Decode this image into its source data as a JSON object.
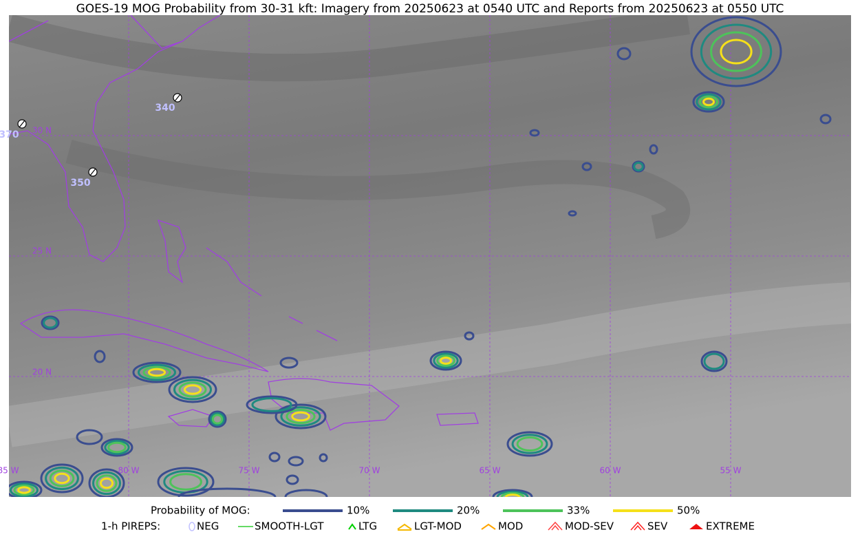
{
  "title": "GOES-19 MOG Probability from 30-31 kft: Imagery from 20250623 at 0540 UTC and Reports from 20250623 at 0550 UTC",
  "map": {
    "lat_labels": [
      "30 N",
      "25 N",
      "20 N"
    ],
    "lon_labels": [
      "85 W",
      "80 W",
      "75 W",
      "70 W",
      "65 W",
      "60 W",
      "55 W"
    ],
    "reports": [
      {
        "label": "340"
      },
      {
        "label": "350"
      },
      {
        "label": "370"
      }
    ]
  },
  "legend": {
    "mog_title": "Probability of MOG:",
    "mog_levels": [
      {
        "label": "10%",
        "color": "#3a4d8f"
      },
      {
        "label": "20%",
        "color": "#1f8a80"
      },
      {
        "label": "33%",
        "color": "#4dc35a"
      },
      {
        "label": "50%",
        "color": "#f5e01a"
      }
    ],
    "pirep_title": "1-h PIREPS:",
    "pirep_types": [
      {
        "label": "NEG",
        "color": "#c0c0ff"
      },
      {
        "label": "SMOOTH-LGT",
        "color": "#32cd32"
      },
      {
        "label": "LTG",
        "color": "#00d000"
      },
      {
        "label": "LGT-MOD",
        "color": "#f5b800"
      },
      {
        "label": "MOD",
        "color": "#ffa500"
      },
      {
        "label": "MOD-SEV",
        "color": "#ff4040"
      },
      {
        "label": "SEV",
        "color": "#ff2020"
      },
      {
        "label": "EXTREME",
        "color": "#ee1111"
      }
    ]
  }
}
